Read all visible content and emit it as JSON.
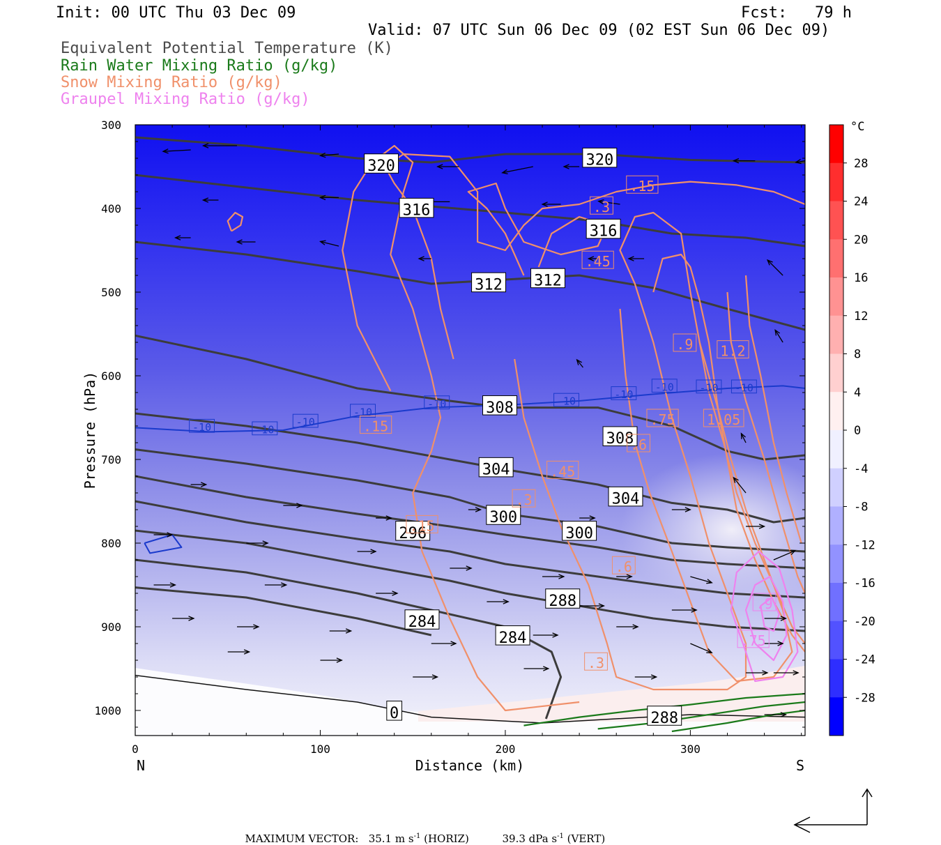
{
  "header": {
    "init": "Init: 00 UTC Thu 03 Dec 09",
    "fcst": "Fcst:   79 h",
    "valid": "Valid: 07 UTC Sun 06 Dec 09 (02 EST Sun 06 Dec 09)"
  },
  "legend": [
    {
      "label": "Equivalent Potential Temperature (K)",
      "color": "#4a4a4a"
    },
    {
      "label": "Rain Water Mixing Ratio (g/kg)",
      "color": "#1a7a1a"
    },
    {
      "label": "Snow Mixing Ratio (g/kg)",
      "color": "#f0906a"
    },
    {
      "label": "Graupel Mixing Ratio (g/kg)",
      "color": "#ee82ee"
    }
  ],
  "chart_data": {
    "type": "cross-section",
    "xlabel": "Distance (km)",
    "ylabel": "Pressure (hPa)",
    "x_ticks": [
      "0",
      "100",
      "200",
      "300"
    ],
    "x_ends": {
      "left": "N",
      "right": "S"
    },
    "y_ticks": [
      "300",
      "400",
      "500",
      "600",
      "700",
      "800",
      "900",
      "1000"
    ],
    "xlim": [
      0,
      362
    ],
    "ylim": [
      300,
      1030
    ],
    "colorbar": {
      "unit": "°C",
      "labels": [
        "28",
        "24",
        "20",
        "16",
        "12",
        "8",
        "4",
        "0",
        "-4",
        "-8",
        "-12",
        "-16",
        "-20",
        "-24",
        "-28"
      ]
    },
    "theta_e_labels": [
      {
        "text": "320",
        "x": 133,
        "p": 348
      },
      {
        "text": "320",
        "x": 251,
        "p": 341
      },
      {
        "text": "316",
        "x": 152,
        "p": 401
      },
      {
        "text": "316",
        "x": 253,
        "p": 426
      },
      {
        "text": "312",
        "x": 191,
        "p": 490
      },
      {
        "text": "312",
        "x": 223,
        "p": 485
      },
      {
        "text": "308",
        "x": 197,
        "p": 637
      },
      {
        "text": "308",
        "x": 262,
        "p": 674
      },
      {
        "text": "304",
        "x": 195,
        "p": 711
      },
      {
        "text": "304",
        "x": 265,
        "p": 746
      },
      {
        "text": "300",
        "x": 199,
        "p": 768
      },
      {
        "text": "300",
        "x": 240,
        "p": 787
      },
      {
        "text": "296",
        "x": 150,
        "p": 787
      },
      {
        "text": "288",
        "x": 231,
        "p": 868
      },
      {
        "text": "284",
        "x": 155,
        "p": 893
      },
      {
        "text": "284",
        "x": 204,
        "p": 912
      },
      {
        "text": "288",
        "x": 286,
        "p": 1008
      },
      {
        "text": "0",
        "x": 140,
        "p": 1002
      }
    ],
    "isotherm_labels": [
      {
        "text": "-10",
        "x": 36,
        "p": 661
      },
      {
        "text": "-10",
        "x": 70,
        "p": 664
      },
      {
        "text": "-10",
        "x": 92,
        "p": 655
      },
      {
        "text": "-10",
        "x": 123,
        "p": 643
      },
      {
        "text": "-10",
        "x": 163,
        "p": 633
      },
      {
        "text": "-10",
        "x": 233,
        "p": 630
      },
      {
        "text": "-10",
        "x": 264,
        "p": 622
      },
      {
        "text": "-10",
        "x": 286,
        "p": 613
      },
      {
        "text": "-10",
        "x": 310,
        "p": 614
      },
      {
        "text": "-10",
        "x": 329,
        "p": 614
      }
    ],
    "snow_labels": [
      {
        "text": ".15",
        "x": 274,
        "p": 373
      },
      {
        "text": ".3",
        "x": 252,
        "p": 398
      },
      {
        "text": ".45",
        "x": 250,
        "p": 463
      },
      {
        "text": ".9",
        "x": 297,
        "p": 562
      },
      {
        "text": "1.2",
        "x": 323,
        "p": 570
      },
      {
        "text": ".75",
        "x": 285,
        "p": 652
      },
      {
        "text": "1.05",
        "x": 318,
        "p": 652
      },
      {
        "text": ".6",
        "x": 272,
        "p": 682
      },
      {
        "text": ".45",
        "x": 231,
        "p": 714
      },
      {
        "text": ".3",
        "x": 210,
        "p": 748
      },
      {
        "text": ".15",
        "x": 155,
        "p": 779
      },
      {
        "text": ".6",
        "x": 264,
        "p": 828
      },
      {
        "text": ".3",
        "x": 249,
        "p": 943
      },
      {
        "text": ".15",
        "x": 130,
        "p": 660
      }
    ],
    "graupel_labels": [
      {
        "text": ".9",
        "x": 340,
        "p": 872
      },
      {
        "text": ".75",
        "x": 334,
        "p": 916
      }
    ],
    "max_vector": {
      "label": "MAXIMUM VECTOR:",
      "horiz": "35.1 m s",
      "horiz_unit": "(HORIZ)",
      "vert": "39.3 dPa s",
      "vert_unit": "(VERT)",
      "sup": "-1"
    }
  }
}
